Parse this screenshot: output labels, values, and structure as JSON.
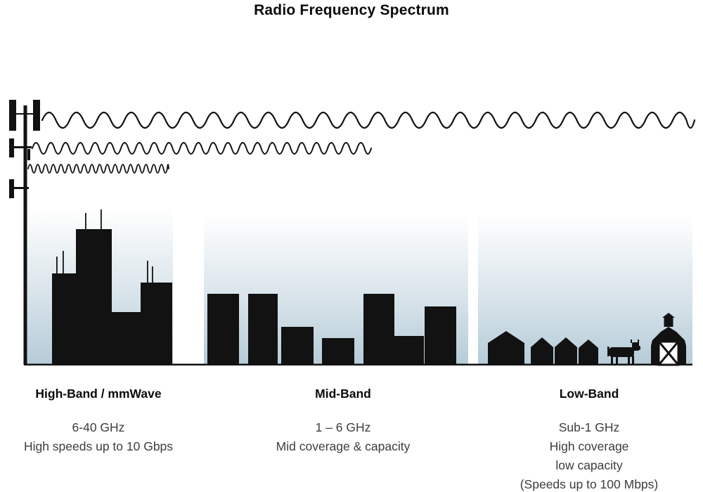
{
  "title": "Radio Frequency Spectrum",
  "colors": {
    "silhouette": "#121212",
    "sky_bottom": "#b2c9d6",
    "body_text": "#3d3d3d"
  },
  "icons": {
    "tower": "cell-tower-icon",
    "city": "city-skyline-icon",
    "suburb": "mid-buildings-icon",
    "houses": "house-icon",
    "cow": "cow-icon",
    "barn": "barn-icon",
    "waves": [
      "low-frequency-wave",
      "mid-frequency-wave",
      "high-frequency-wave"
    ]
  },
  "bands": [
    {
      "label": "High-Band / mmWave",
      "frequency": "6-40 GHz",
      "details": [
        "High speeds up to 10 Gbps"
      ]
    },
    {
      "label": "Mid-Band",
      "frequency": "1 – 6 GHz",
      "details": [
        "Mid coverage & capacity"
      ]
    },
    {
      "label": "Low-Band",
      "frequency": "Sub-1 GHz",
      "details": [
        "High coverage",
        "low capacity",
        "(Speeds up to 100 Mbps)"
      ]
    }
  ]
}
